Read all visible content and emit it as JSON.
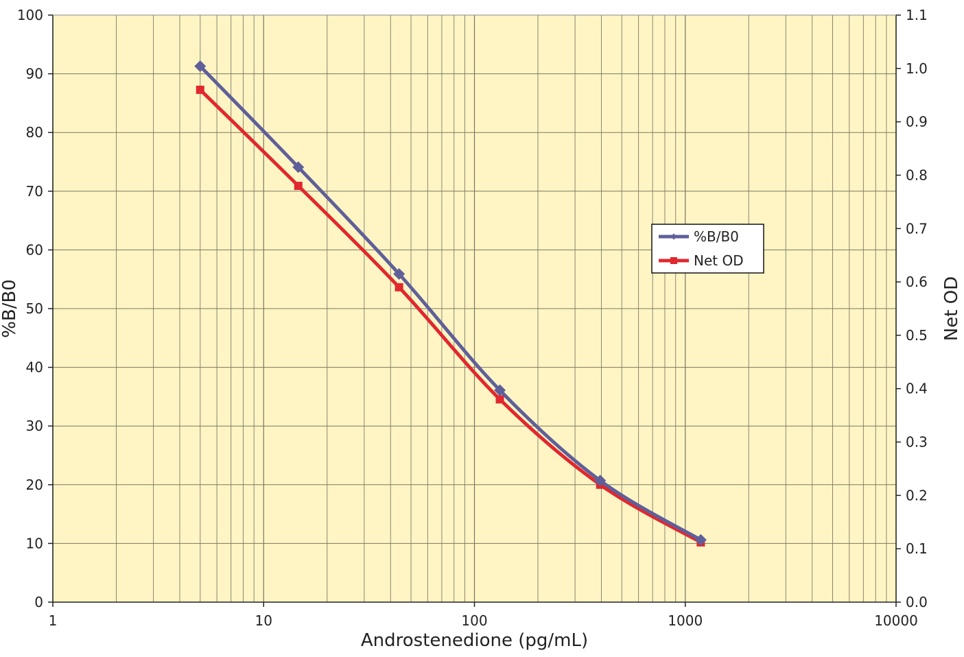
{
  "chart_data": {
    "type": "line",
    "xlabel": "Androstenedione (pg/mL)",
    "ylabel": "%B/B0",
    "y2label": "Net OD",
    "x_scale": "log",
    "xlim": [
      1,
      10000
    ],
    "ylim": [
      0,
      100
    ],
    "y2lim": [
      0.0,
      1.1
    ],
    "x_ticks": [
      1,
      10,
      100,
      1000,
      10000
    ],
    "x_tick_labels": [
      "1",
      "10",
      "100",
      "1000",
      "10000"
    ],
    "y_ticks": [
      0,
      10,
      20,
      30,
      40,
      50,
      60,
      70,
      80,
      90,
      100
    ],
    "y_tick_labels": [
      "0",
      "10",
      "20",
      "30",
      "40",
      "50",
      "60",
      "70",
      "80",
      "90",
      "100"
    ],
    "y2_ticks": [
      0.0,
      0.1,
      0.2,
      0.3,
      0.4,
      0.5,
      0.6,
      0.7,
      0.8,
      0.9,
      1.0,
      1.1
    ],
    "y2_tick_labels": [
      "0.0",
      "0.1",
      "0.2",
      "0.3",
      "0.4",
      "0.5",
      "0.6",
      "0.7",
      "0.8",
      "0.9",
      "1.0",
      "1.1"
    ],
    "grid": true,
    "legend_position": "right",
    "background_color": "#fff5c4",
    "series": [
      {
        "name": "%B/B0",
        "axis": "left",
        "color": "#5f5f9a",
        "marker": "diamond",
        "x": [
          5,
          14.6,
          43.9,
          132,
          395,
          1185
        ],
        "y": [
          91.3,
          74.1,
          55.9,
          36.1,
          20.7,
          10.6
        ]
      },
      {
        "name": "Net OD",
        "axis": "right",
        "color": "#e0282e",
        "marker": "square",
        "x": [
          5,
          14.6,
          43.9,
          132,
          395,
          1185
        ],
        "y": [
          0.96,
          0.78,
          0.59,
          0.38,
          0.22,
          0.112
        ]
      }
    ]
  }
}
